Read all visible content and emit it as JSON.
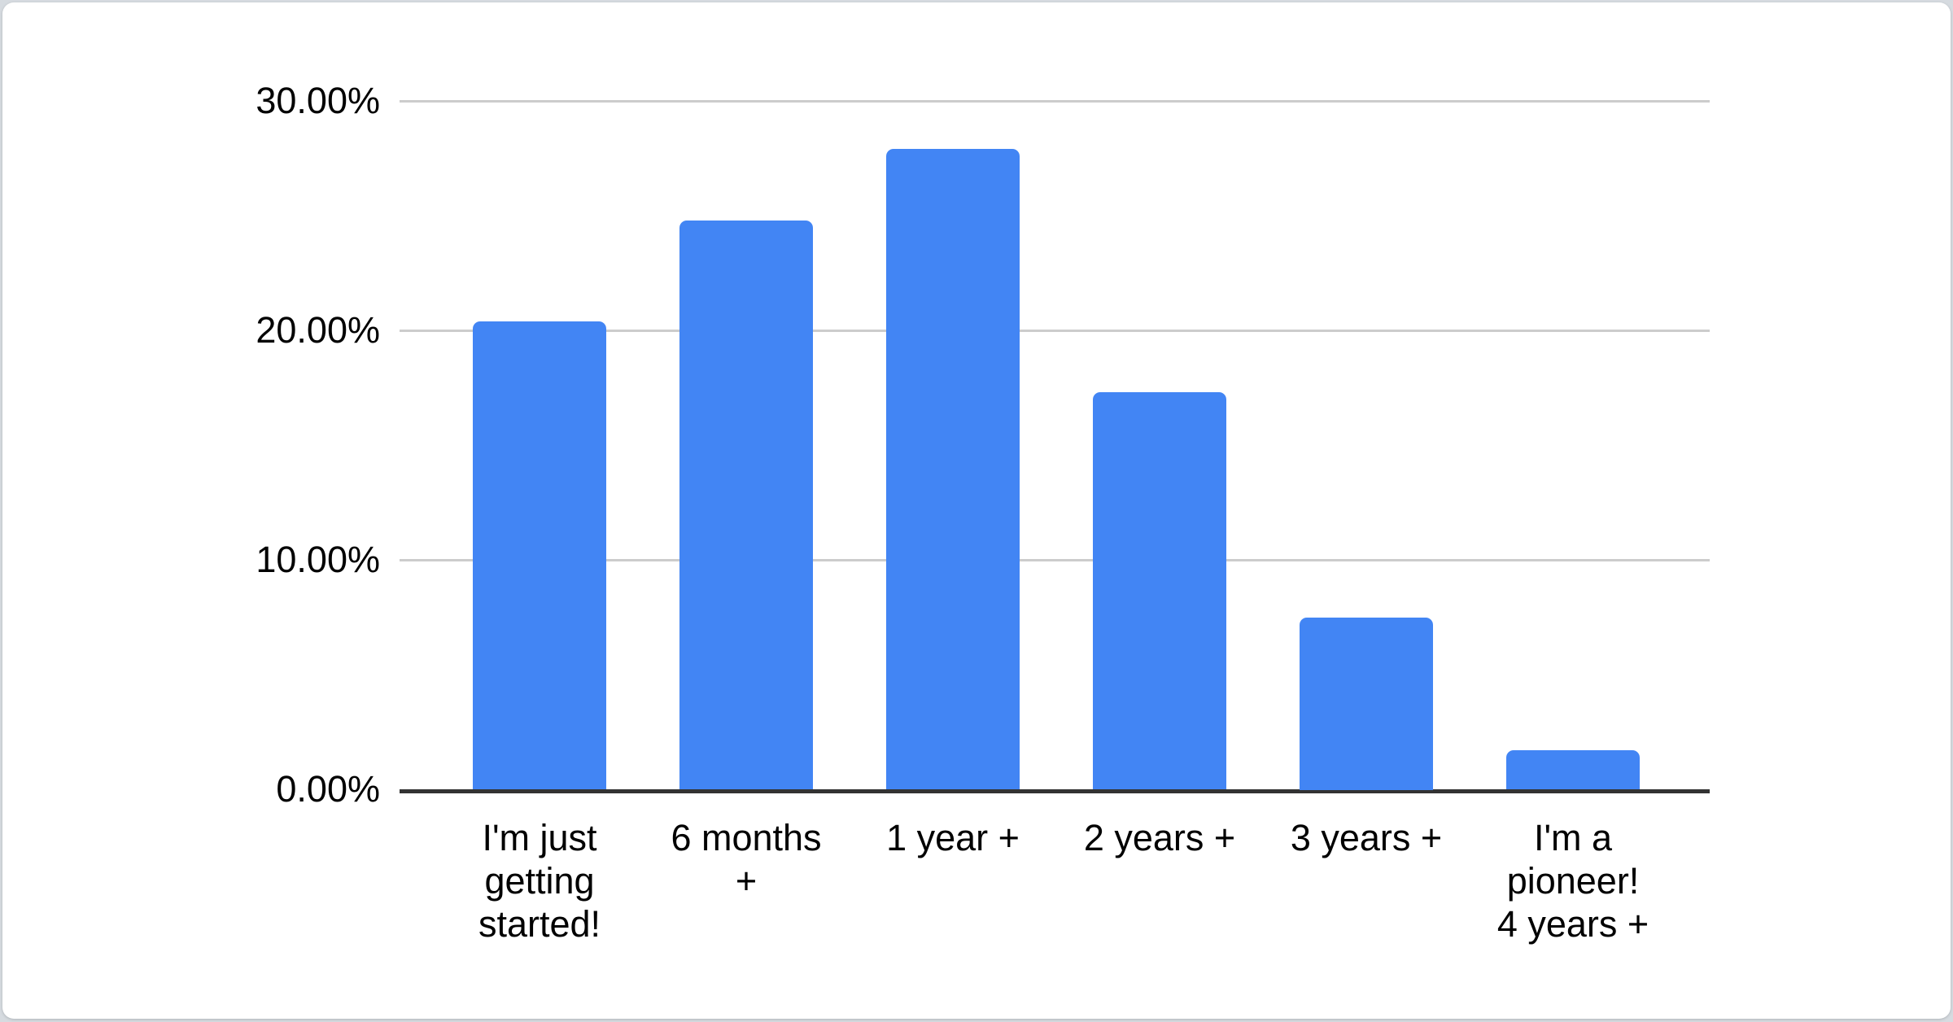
{
  "chart_data": {
    "type": "bar",
    "title": "",
    "xlabel": "",
    "ylabel": "",
    "categories": [
      "I'm just getting started!",
      "6 months +",
      "1 year +",
      "2 years +",
      "3 years +",
      "I'm a pioneer! 4 years +"
    ],
    "values": [
      20.4,
      24.8,
      27.9,
      17.3,
      7.5,
      1.7
    ],
    "value_unit": "%",
    "ylim": [
      0,
      30
    ],
    "y_ticks": [
      {
        "label": "30.00%",
        "value": 30
      },
      {
        "label": "20.00%",
        "value": 20
      },
      {
        "label": "10.00%",
        "value": 10
      },
      {
        "label": "0.00%",
        "value": 0
      }
    ],
    "x_tick_display": [
      "I'm just\ngetting\nstarted!",
      "6 months\n+",
      "1 year +",
      "2 years +",
      "3 years +",
      "I'm a\npioneer!\n4 years +"
    ],
    "grid": "horizontal",
    "legend_position": "none",
    "bar_color": "#4285f4"
  },
  "colors": {
    "bar": "#4285f4",
    "gridline": "#cccccc",
    "axis_line": "#333333",
    "text": "#000000",
    "page_background": "#d6dbe0",
    "card_background": "#ffffff"
  }
}
